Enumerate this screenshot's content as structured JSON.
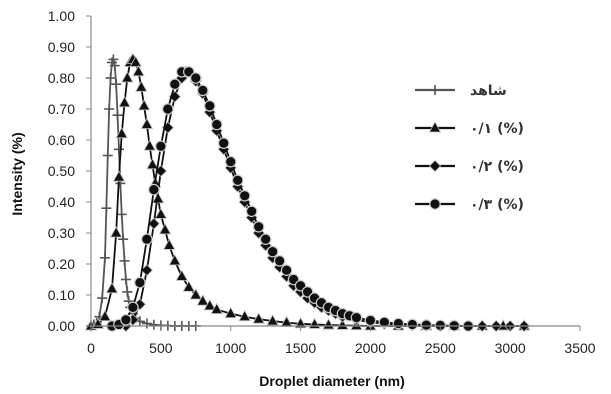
{
  "chart_data": {
    "type": "line",
    "xlabel": "Droplet diameter (nm)",
    "ylabel": "Intensity (%)",
    "xlim": [
      0,
      3500
    ],
    "ylim": [
      0,
      1.0
    ],
    "x_ticks": [
      "0",
      "500",
      "1000",
      "1500",
      "2000",
      "2500",
      "3000",
      "3500"
    ],
    "y_ticks": [
      "0.00",
      "0.10",
      "0.20",
      "0.30",
      "0.40",
      "0.50",
      "0.60",
      "0.70",
      "0.80",
      "0.90",
      "1.00"
    ],
    "grid": false,
    "legend_position": "right",
    "series": [
      {
        "name": "شاهد",
        "marker": "plus",
        "color": "#555555",
        "points": [
          [
            0,
            0.0
          ],
          [
            20,
            0.005
          ],
          [
            40,
            0.01
          ],
          [
            60,
            0.03
          ],
          [
            80,
            0.09
          ],
          [
            100,
            0.22
          ],
          [
            110,
            0.38
          ],
          [
            120,
            0.55
          ],
          [
            130,
            0.7
          ],
          [
            140,
            0.8
          ],
          [
            150,
            0.85
          ],
          [
            160,
            0.86
          ],
          [
            170,
            0.84
          ],
          [
            180,
            0.78
          ],
          [
            190,
            0.68
          ],
          [
            200,
            0.57
          ],
          [
            210,
            0.46
          ],
          [
            220,
            0.36
          ],
          [
            230,
            0.28
          ],
          [
            240,
            0.21
          ],
          [
            250,
            0.15
          ],
          [
            260,
            0.11
          ],
          [
            270,
            0.08
          ],
          [
            280,
            0.06
          ],
          [
            300,
            0.04
          ],
          [
            320,
            0.025
          ],
          [
            350,
            0.015
          ],
          [
            400,
            0.008
          ],
          [
            450,
            0.004
          ],
          [
            500,
            0.002
          ],
          [
            550,
            0.001
          ],
          [
            600,
            0.0
          ],
          [
            650,
            0.0
          ],
          [
            700,
            0.0
          ],
          [
            750,
            0.0
          ]
        ]
      },
      {
        "name": "٠/١ (%)",
        "marker": "triangle",
        "color": "#111111",
        "points": [
          [
            0,
            0.0
          ],
          [
            50,
            0.005
          ],
          [
            100,
            0.03
          ],
          [
            150,
            0.12
          ],
          [
            180,
            0.3
          ],
          [
            200,
            0.48
          ],
          [
            220,
            0.62
          ],
          [
            240,
            0.72
          ],
          [
            260,
            0.8
          ],
          [
            280,
            0.85
          ],
          [
            300,
            0.86
          ],
          [
            320,
            0.85
          ],
          [
            340,
            0.82
          ],
          [
            360,
            0.77
          ],
          [
            380,
            0.71
          ],
          [
            400,
            0.65
          ],
          [
            420,
            0.58
          ],
          [
            440,
            0.52
          ],
          [
            460,
            0.46
          ],
          [
            480,
            0.41
          ],
          [
            500,
            0.36
          ],
          [
            530,
            0.31
          ],
          [
            560,
            0.26
          ],
          [
            600,
            0.21
          ],
          [
            650,
            0.16
          ],
          [
            700,
            0.125
          ],
          [
            750,
            0.1
          ],
          [
            800,
            0.08
          ],
          [
            850,
            0.065
          ],
          [
            900,
            0.053
          ],
          [
            1000,
            0.04
          ],
          [
            1100,
            0.03
          ],
          [
            1200,
            0.022
          ],
          [
            1300,
            0.016
          ],
          [
            1400,
            0.011
          ],
          [
            1500,
            0.007
          ],
          [
            1600,
            0.005
          ],
          [
            1700,
            0.003
          ],
          [
            1800,
            0.002
          ],
          [
            1900,
            0.001
          ],
          [
            2000,
            0.0
          ],
          [
            2200,
            0.0
          ],
          [
            2400,
            0.0
          ],
          [
            2600,
            0.0
          ],
          [
            2800,
            0.0
          ],
          [
            2950,
            0.0
          ],
          [
            3100,
            0.0
          ]
        ]
      },
      {
        "name": "٠/٢ (%)",
        "marker": "diamond",
        "color": "#111111",
        "points": [
          [
            250,
            0.0
          ],
          [
            300,
            0.02
          ],
          [
            350,
            0.07
          ],
          [
            400,
            0.18
          ],
          [
            450,
            0.33
          ],
          [
            500,
            0.5
          ],
          [
            550,
            0.64
          ],
          [
            600,
            0.74
          ],
          [
            650,
            0.8
          ],
          [
            680,
            0.82
          ],
          [
            700,
            0.82
          ],
          [
            750,
            0.79
          ],
          [
            800,
            0.75
          ],
          [
            850,
            0.69
          ],
          [
            900,
            0.63
          ],
          [
            950,
            0.57
          ],
          [
            1000,
            0.51
          ],
          [
            1050,
            0.45
          ],
          [
            1100,
            0.4
          ],
          [
            1150,
            0.35
          ],
          [
            1200,
            0.3
          ],
          [
            1250,
            0.26
          ],
          [
            1300,
            0.22
          ],
          [
            1350,
            0.19
          ],
          [
            1400,
            0.16
          ],
          [
            1450,
            0.13
          ],
          [
            1500,
            0.11
          ],
          [
            1550,
            0.09
          ],
          [
            1600,
            0.075
          ],
          [
            1650,
            0.06
          ],
          [
            1700,
            0.05
          ],
          [
            1750,
            0.04
          ],
          [
            1800,
            0.03
          ],
          [
            1900,
            0.02
          ],
          [
            2000,
            0.012
          ],
          [
            2100,
            0.007
          ],
          [
            2200,
            0.004
          ],
          [
            2300,
            0.002
          ],
          [
            2400,
            0.001
          ],
          [
            2500,
            0.0
          ],
          [
            2600,
            0.0
          ],
          [
            2700,
            0.0
          ],
          [
            2800,
            0.0
          ],
          [
            2900,
            0.0
          ],
          [
            3000,
            0.0
          ],
          [
            3100,
            0.0
          ]
        ]
      },
      {
        "name": "٠/٣ (%)",
        "marker": "circle",
        "color": "#111111",
        "points": [
          [
            150,
            0.0
          ],
          [
            200,
            0.005
          ],
          [
            250,
            0.02
          ],
          [
            300,
            0.06
          ],
          [
            350,
            0.14
          ],
          [
            400,
            0.28
          ],
          [
            450,
            0.44
          ],
          [
            500,
            0.58
          ],
          [
            550,
            0.7
          ],
          [
            600,
            0.78
          ],
          [
            650,
            0.82
          ],
          [
            700,
            0.82
          ],
          [
            750,
            0.8
          ],
          [
            800,
            0.76
          ],
          [
            850,
            0.71
          ],
          [
            900,
            0.65
          ],
          [
            950,
            0.59
          ],
          [
            1000,
            0.53
          ],
          [
            1050,
            0.47
          ],
          [
            1100,
            0.42
          ],
          [
            1150,
            0.37
          ],
          [
            1200,
            0.32
          ],
          [
            1250,
            0.28
          ],
          [
            1300,
            0.24
          ],
          [
            1350,
            0.21
          ],
          [
            1400,
            0.18
          ],
          [
            1450,
            0.15
          ],
          [
            1500,
            0.13
          ],
          [
            1550,
            0.11
          ],
          [
            1600,
            0.09
          ],
          [
            1650,
            0.075
          ],
          [
            1700,
            0.06
          ],
          [
            1750,
            0.05
          ],
          [
            1800,
            0.04
          ],
          [
            1850,
            0.033
          ],
          [
            1900,
            0.027
          ],
          [
            2000,
            0.018
          ],
          [
            2100,
            0.012
          ],
          [
            2200,
            0.008
          ],
          [
            2300,
            0.005
          ],
          [
            2400,
            0.003
          ],
          [
            2500,
            0.002
          ],
          [
            2600,
            0.001
          ],
          [
            2700,
            0.0
          ]
        ]
      }
    ]
  }
}
